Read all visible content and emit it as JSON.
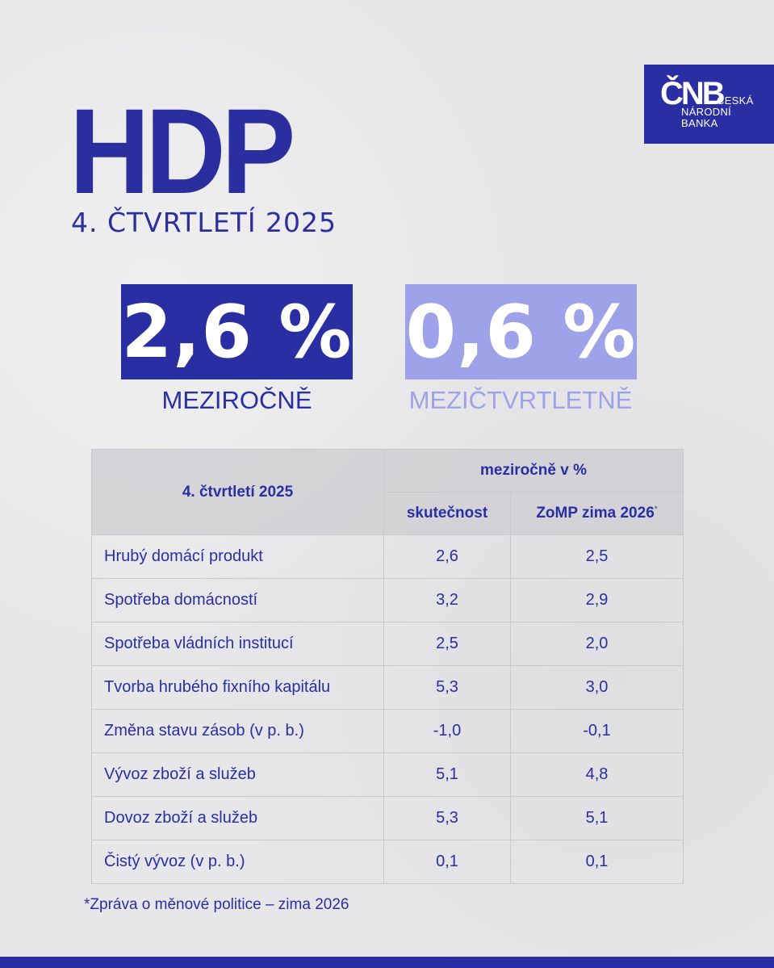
{
  "header": {
    "title": "HDP",
    "subtitle": "4. ČTVRTLETÍ 2025"
  },
  "logo": {
    "mark": "ČNB",
    "line1": "ČESKÁ",
    "line2": "NÁRODNÍ",
    "line3": "BANKA"
  },
  "stats": [
    {
      "value": "2,6 %",
      "label": "MEZIROČNĚ"
    },
    {
      "value": "0,6 %",
      "label": "MEZIČTVRTLETNĚ"
    }
  ],
  "table": {
    "period_header": "4. čtvrtletí 2025",
    "group_header": "meziročně v %",
    "col_actual": "skutečnost",
    "col_forecast": "ZoMP zima 2026",
    "col_forecast_mark": "*",
    "rows": [
      {
        "name": "Hrubý domácí produkt",
        "actual": "2,6",
        "forecast": "2,5"
      },
      {
        "name": "Spotřeba domácností",
        "actual": "3,2",
        "forecast": "2,9"
      },
      {
        "name": "Spotřeba vládních institucí",
        "actual": "2,5",
        "forecast": "2,0"
      },
      {
        "name": "Tvorba hrubého fixního kapitálu",
        "actual": "5,3",
        "forecast": "3,0"
      },
      {
        "name": "Změna stavu zásob (v p. b.)",
        "actual": "-1,0",
        "forecast": "-0,1"
      },
      {
        "name": "Vývoz zboží a služeb",
        "actual": "5,1",
        "forecast": "4,8"
      },
      {
        "name": "Dovoz zboží a služeb",
        "actual": "5,3",
        "forecast": "5,1"
      },
      {
        "name": "Čistý vývoz (v p. b.)",
        "actual": "0,1",
        "forecast": "0,1"
      }
    ]
  },
  "footnote": "*Zpráva o měnové politice – zima 2026",
  "colors": {
    "primary": "#2a2ea3",
    "light": "#9ea2e8"
  }
}
